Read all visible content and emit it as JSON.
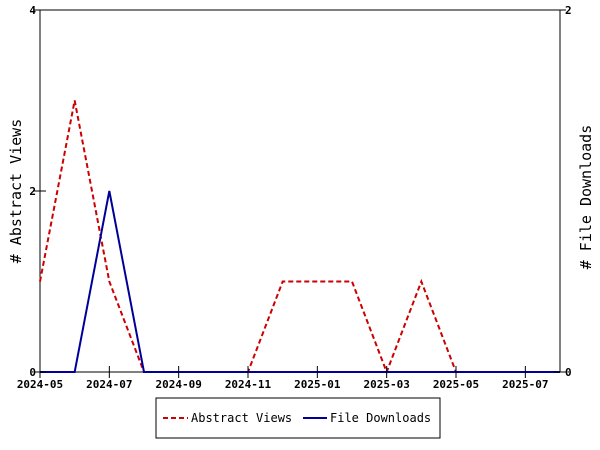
{
  "chart_data": {
    "type": "line",
    "x": [
      "2024-05",
      "2024-06",
      "2024-07",
      "2024-08",
      "2024-09",
      "2024-10",
      "2024-11",
      "2024-12",
      "2025-01",
      "2025-02",
      "2025-03",
      "2025-04",
      "2025-05",
      "2025-06",
      "2025-07",
      "2025-08"
    ],
    "xticks": [
      "2024-05",
      "2024-07",
      "2024-09",
      "2024-11",
      "2025-01",
      "2025-03",
      "2025-05",
      "2025-07"
    ],
    "series": [
      {
        "name": "Abstract Views",
        "axis": "left",
        "color": "#cc0000",
        "dash": "dashed",
        "values": [
          1,
          3,
          1,
          0,
          0,
          0,
          0,
          1,
          1,
          1,
          0,
          1,
          0,
          0,
          0,
          0
        ]
      },
      {
        "name": "File Downloads",
        "axis": "right",
        "color": "#000099",
        "dash": "solid",
        "values": [
          0,
          0,
          1,
          0,
          0,
          0,
          0,
          0,
          0,
          0,
          0,
          0,
          0,
          0,
          0,
          0
        ]
      }
    ],
    "ylabel": "# Abstract Views",
    "ylim": [
      0,
      4
    ],
    "yticks": [
      0,
      2,
      4
    ],
    "y2label": "# File Downloads",
    "y2lim": [
      0,
      2
    ],
    "y2ticks": [
      0,
      2
    ],
    "legend_position": "bottom",
    "grid": false
  }
}
